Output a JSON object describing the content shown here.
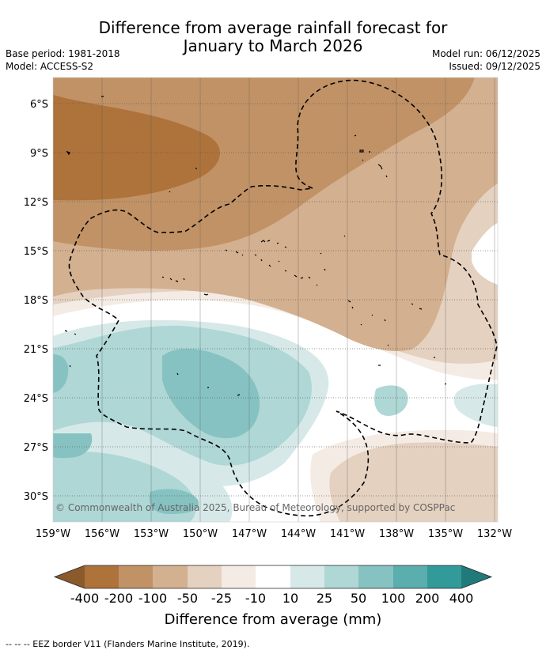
{
  "title_line1": "Difference from average rainfall forecast for",
  "title_line2": "January to March 2026",
  "base_period": "Base period: 1981-2018",
  "model": "Model: ACCESS-S2",
  "model_run": "Model run: 06/12/2025",
  "issued": "Issued: 09/12/2025",
  "copyright": "© Commonwealth of Australia 2025, Bureau of Meteorology, supported by COSPPac",
  "lat_ticks": [
    "6°S",
    "9°S",
    "12°S",
    "15°S",
    "18°S",
    "21°S",
    "24°S",
    "27°S",
    "30°S"
  ],
  "lon_ticks": [
    "159°W",
    "156°W",
    "153°W",
    "150°W",
    "147°W",
    "144°W",
    "141°W",
    "138°W",
    "135°W",
    "132°W"
  ],
  "colorbar": {
    "labels": [
      "-400",
      "-200",
      "-100",
      "-50",
      "-25",
      "-10",
      "10",
      "25",
      "50",
      "100",
      "200",
      "400"
    ],
    "title": "Difference from average (mm)",
    "colors": [
      "#8b5a2b",
      "#ad733b",
      "#c19266",
      "#d3b08f",
      "#e4d1c0",
      "#f4ebe4",
      "#ffffff",
      "#d6e9e8",
      "#aed7d6",
      "#86c2c1",
      "#5aaead",
      "#329a99",
      "#217a7a"
    ]
  },
  "legend_text": "--  --  -- EEZ border V11 (Flanders Marine Institute, 2019)."
}
